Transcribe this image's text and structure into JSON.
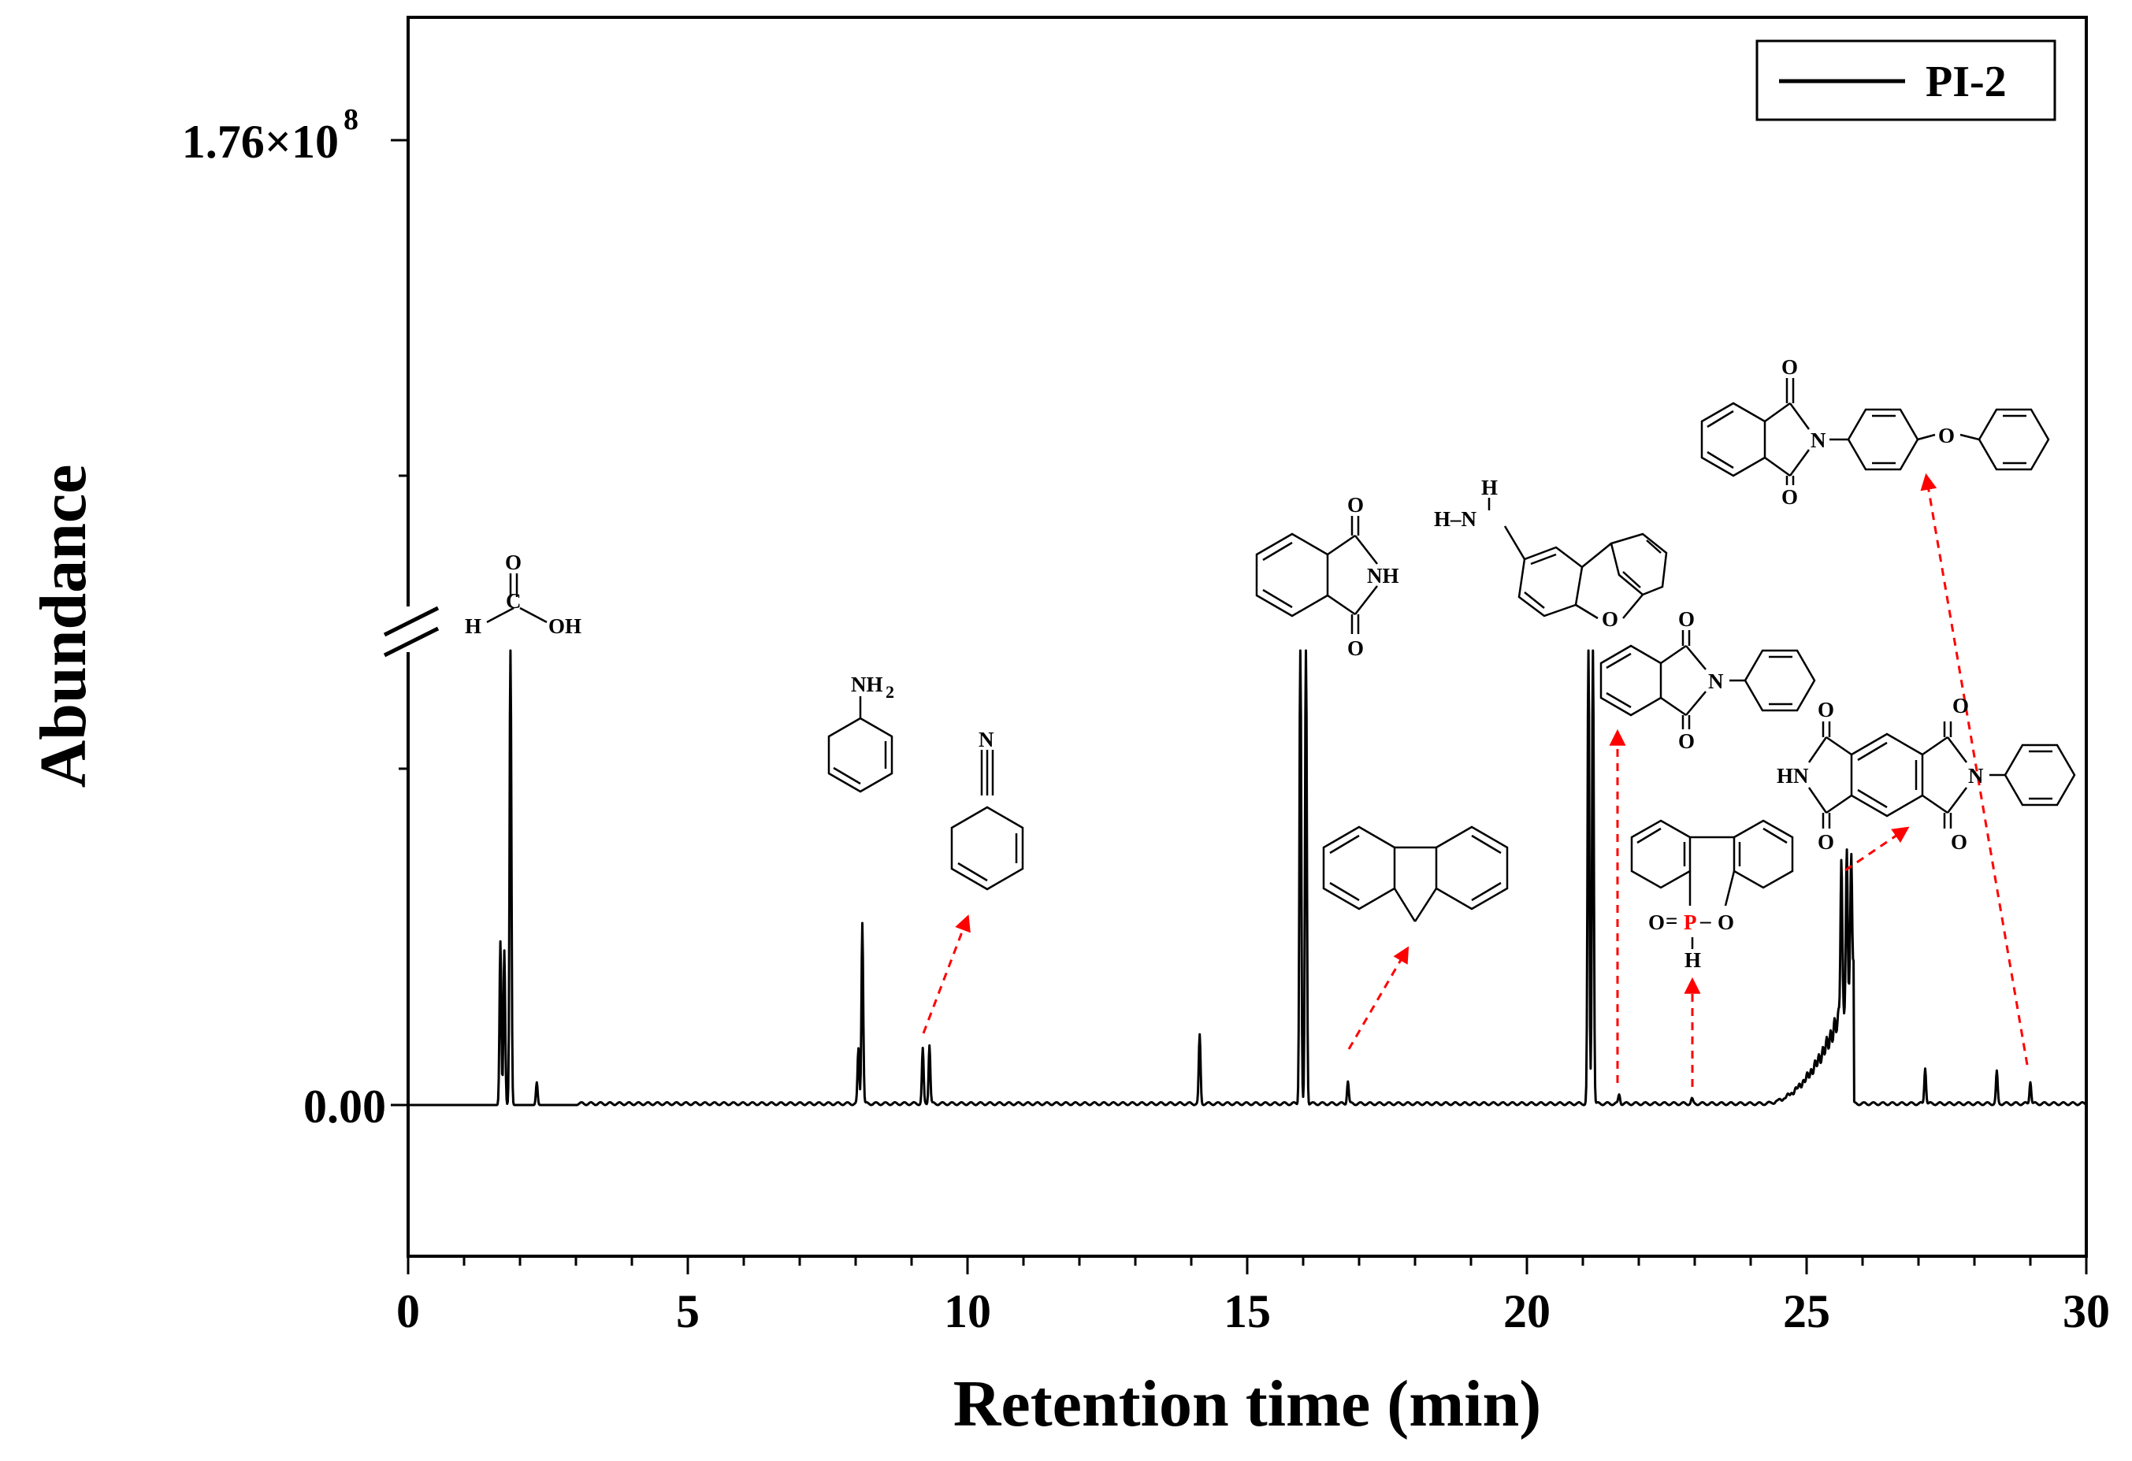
{
  "chart_data": {
    "type": "line",
    "title": "",
    "xlabel": "Retention time (min)",
    "ylabel": "Abundance",
    "xlim": [
      0,
      30
    ],
    "x_ticks": [
      0,
      5,
      10,
      15,
      20,
      25,
      30
    ],
    "y_ticks": {
      "zero": "0.00",
      "top_base": "1.76×10",
      "top_exp": "8"
    },
    "axis_break": true,
    "legend": {
      "position": "top-right",
      "entries": [
        "PI-2"
      ]
    },
    "series": [
      {
        "name": "PI-2",
        "baseline_rel": 0.0,
        "peaks": [
          {
            "x": 1.65,
            "h": 0.36
          },
          {
            "x": 1.72,
            "h": 0.34
          },
          {
            "x": 1.83,
            "h": 1.05
          },
          {
            "x": 2.3,
            "h": 0.05
          },
          {
            "x": 8.05,
            "h": 0.12
          },
          {
            "x": 8.12,
            "h": 0.4
          },
          {
            "x": 9.2,
            "h": 0.12
          },
          {
            "x": 9.32,
            "h": 0.13
          },
          {
            "x": 14.15,
            "h": 0.15
          },
          {
            "x": 15.95,
            "h": 1.05
          },
          {
            "x": 16.05,
            "h": 1.05
          },
          {
            "x": 16.8,
            "h": 0.05
          },
          {
            "x": 21.1,
            "h": 1.05
          },
          {
            "x": 21.18,
            "h": 1.05
          },
          {
            "x": 21.65,
            "h": 0.02
          },
          {
            "x": 22.95,
            "h": 0.01
          },
          {
            "x": 25.62,
            "h": 0.34
          },
          {
            "x": 25.72,
            "h": 0.31
          },
          {
            "x": 25.8,
            "h": 0.3
          },
          {
            "x": 27.12,
            "h": 0.08
          },
          {
            "x": 28.4,
            "h": 0.07
          },
          {
            "x": 29.0,
            "h": 0.05
          }
        ],
        "hump": {
          "start": 24.2,
          "end": 25.85
        }
      }
    ],
    "annotations": [
      {
        "id": "formic-acid",
        "peak_rt": 1.83,
        "labels": {
          "o": "O",
          "c": "C",
          "h": "H",
          "oh": "OH"
        }
      },
      {
        "id": "aniline",
        "peak_rt": 8.12,
        "labels": {
          "nh": "NH",
          "sub2": "2"
        }
      },
      {
        "id": "benzonitrile",
        "peak_rt": 9.32,
        "labels": {
          "n": "N"
        }
      },
      {
        "id": "phthalimide",
        "peak_rt": 16.0,
        "labels": {
          "o1": "O",
          "nh": "NH",
          "o2": "O"
        }
      },
      {
        "id": "fluorene",
        "peak_rt": 16.8,
        "labels": {}
      },
      {
        "id": "aminodibenzofuran",
        "peak_rt": 21.1,
        "labels": {
          "h": "H",
          "hn": "H–N",
          "o": "O"
        }
      },
      {
        "id": "n-phenylphthalimide",
        "peak_rt": 21.65,
        "labels": {
          "o1": "O",
          "n": "N",
          "o2": "O"
        }
      },
      {
        "id": "dopo",
        "peak_rt": 22.95,
        "labels": {
          "o_left": "O",
          "eq": "=",
          "p": "P",
          "dash": "–",
          "o_ring": "O",
          "h": "H"
        }
      },
      {
        "id": "pyromellitic-diimide",
        "peak_rt": 25.7,
        "labels": {
          "o1": "O",
          "o2": "O",
          "o3": "O",
          "o4": "O",
          "hn": "HN",
          "n": "N"
        }
      },
      {
        "id": "phthalimide-phenoxyphenyl",
        "peak_rt": 29.0,
        "labels": {
          "o1": "O",
          "n": "N",
          "o2": "O",
          "o_ether": "O"
        }
      }
    ],
    "colors": {
      "line": "#000000",
      "arrow": "#ff0000",
      "phosphorus": "#ff0000"
    }
  }
}
